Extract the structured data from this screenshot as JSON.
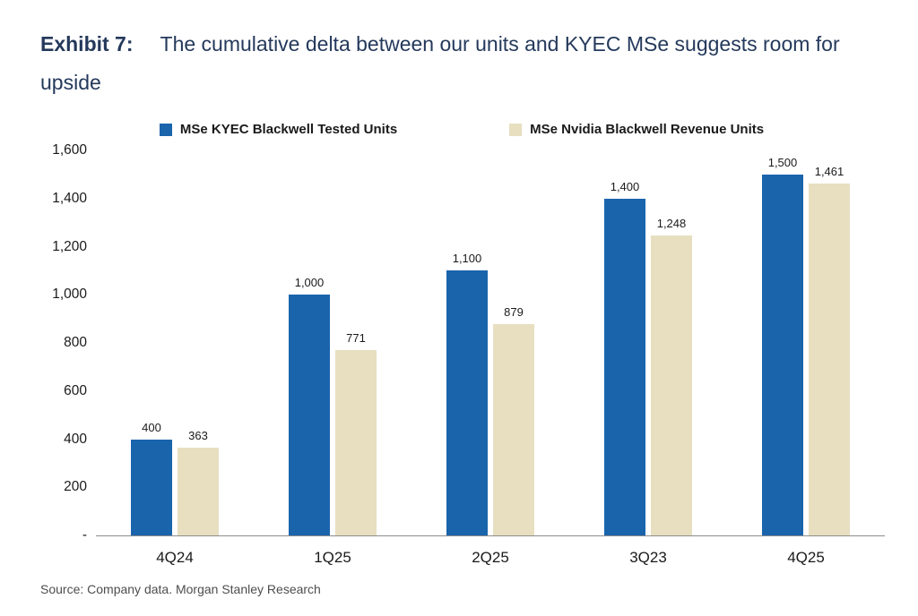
{
  "title": {
    "exhibit_label": "Exhibit 7:",
    "text": "The cumulative delta between our units and KYEC MSe suggests room for upside"
  },
  "colors": {
    "series1_blue": "#1A64AC",
    "series2_beige": "#E7DFC0",
    "title_text": "#24395B",
    "axis_text": "#1A1A1A",
    "axis_line": "#8C8C8C",
    "source_text": "#4D4D4D"
  },
  "chart_data": {
    "type": "bar",
    "title": "Exhibit 7: The cumulative delta between our units and KYEC MSe suggests room for upside",
    "categories": [
      "4Q24",
      "1Q25",
      "2Q25",
      "3Q23",
      "4Q25"
    ],
    "series": [
      {
        "name": "MSe KYEC Blackwell Tested Units",
        "color": "#1A64AC",
        "values": [
          400,
          1000,
          1100,
          1400,
          1500
        ]
      },
      {
        "name": "MSe Nvidia Blackwell Revenue Units",
        "color": "#E7DFC0",
        "values": [
          363,
          771,
          879,
          1248,
          1461
        ]
      }
    ],
    "value_labels": [
      "400",
      "363",
      "1,000",
      "771",
      "1,100",
      "879",
      "1,400",
      "1,248",
      "1,500",
      "1,461"
    ],
    "xlabel": "",
    "ylabel": "",
    "ylim": [
      0,
      1600
    ],
    "ytick_step": 200,
    "ytick_labels": [
      "-",
      "200",
      "400",
      "600",
      "800",
      "1,000",
      "1,200",
      "1,400",
      "1,600"
    ],
    "grid": false,
    "legend_position": "top"
  },
  "source": "Source: Company data. Morgan Stanley Research"
}
